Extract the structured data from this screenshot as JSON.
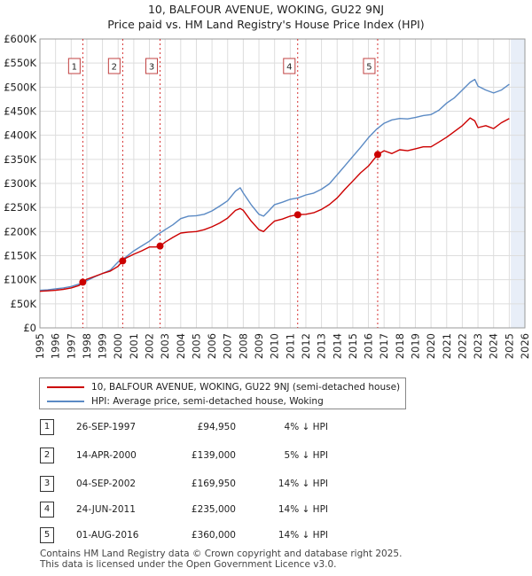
{
  "titles": {
    "line1": "10, BALFOUR AVENUE, WOKING, GU22 9NJ",
    "line2": "Price paid vs. HM Land Registry's House Price Index (HPI)"
  },
  "legend": {
    "red_label": "10, BALFOUR AVENUE, WOKING, GU22 9NJ (semi-detached house)",
    "blue_label": "HPI: Average price, semi-detached house, Woking"
  },
  "colors": {
    "price_line": "#cc0000",
    "hpi_line": "#5b8ac4",
    "highlight_band": "#e8eef8",
    "marker_line": "#cc0000"
  },
  "transactions": [
    {
      "num": "1",
      "date": "26-SEP-1997",
      "price": "£94,950",
      "hpi": "4% ↓ HPI"
    },
    {
      "num": "2",
      "date": "14-APR-2000",
      "price": "£139,000",
      "hpi": "5% ↓ HPI"
    },
    {
      "num": "3",
      "date": "04-SEP-2002",
      "price": "£169,950",
      "hpi": "14% ↓ HPI"
    },
    {
      "num": "4",
      "date": "24-JUN-2011",
      "price": "£235,000",
      "hpi": "14% ↓ HPI"
    },
    {
      "num": "5",
      "date": "01-AUG-2016",
      "price": "£360,000",
      "hpi": "14% ↓ HPI"
    }
  ],
  "footer": {
    "line1": "Contains HM Land Registry data © Crown copyright and database right 2025.",
    "line2": "This data is licensed under the Open Government Licence v3.0."
  },
  "chart_data": {
    "type": "line",
    "xlim": [
      1995,
      2026
    ],
    "ylim": [
      0,
      600000
    ],
    "x_ticks": [
      1995,
      1996,
      1997,
      1998,
      1999,
      2000,
      2001,
      2002,
      2003,
      2004,
      2005,
      2006,
      2007,
      2008,
      2009,
      2010,
      2011,
      2012,
      2013,
      2014,
      2015,
      2016,
      2017,
      2018,
      2019,
      2020,
      2021,
      2022,
      2023,
      2024,
      2025,
      2026
    ],
    "y_ticks": [
      {
        "value": 0,
        "label": "£0"
      },
      {
        "value": 50000,
        "label": "£50K"
      },
      {
        "value": 100000,
        "label": "£100K"
      },
      {
        "value": 150000,
        "label": "£150K"
      },
      {
        "value": 200000,
        "label": "£200K"
      },
      {
        "value": 250000,
        "label": "£250K"
      },
      {
        "value": 300000,
        "label": "£300K"
      },
      {
        "value": 350000,
        "label": "£350K"
      },
      {
        "value": 400000,
        "label": "£400K"
      },
      {
        "value": 450000,
        "label": "£450K"
      },
      {
        "value": 500000,
        "label": "£500K"
      },
      {
        "value": 550000,
        "label": "£550K"
      },
      {
        "value": 600000,
        "label": "£600K"
      }
    ],
    "grid": true,
    "highlight_region": [
      2025.1,
      2026
    ],
    "series": [
      {
        "name": "10, BALFOUR AVENUE, WOKING, GU22 9NJ (semi-detached house)",
        "x": [
          1995.0,
          1995.5,
          1996.0,
          1996.5,
          1997.0,
          1997.5,
          1997.74,
          1998.0,
          1998.5,
          1999.0,
          1999.5,
          2000.0,
          2000.29,
          2000.5,
          2001.0,
          2001.5,
          2002.0,
          2002.5,
          2002.68,
          2003.0,
          2003.5,
          2004.0,
          2004.5,
          2005.0,
          2005.5,
          2006.0,
          2006.5,
          2007.0,
          2007.5,
          2007.8,
          2008.0,
          2008.5,
          2009.0,
          2009.3,
          2009.6,
          2010.0,
          2010.5,
          2011.0,
          2011.48,
          2012.0,
          2012.5,
          2013.0,
          2013.5,
          2014.0,
          2014.5,
          2015.0,
          2015.5,
          2016.0,
          2016.59,
          2017.0,
          2017.5,
          2018.0,
          2018.5,
          2019.0,
          2019.5,
          2020.0,
          2020.5,
          2021.0,
          2021.5,
          2022.0,
          2022.5,
          2022.8,
          2023.0,
          2023.5,
          2024.0,
          2024.5,
          2025.0
        ],
        "y": [
          76000,
          77000,
          78000,
          80000,
          83000,
          88000,
          94950,
          101000,
          107000,
          113000,
          118000,
          128000,
          139000,
          145000,
          153000,
          160000,
          168000,
          168000,
          169950,
          178000,
          188000,
          197000,
          199000,
          200000,
          204000,
          210000,
          218000,
          228000,
          244000,
          248000,
          244000,
          222000,
          204000,
          200000,
          210000,
          222000,
          226000,
          232000,
          235000,
          236000,
          239000,
          246000,
          256000,
          270000,
          288000,
          305000,
          322000,
          336000,
          360000,
          368000,
          362000,
          370000,
          368000,
          372000,
          376000,
          376000,
          386000,
          396000,
          408000,
          420000,
          436000,
          430000,
          416000,
          420000,
          414000,
          426000,
          435000
        ]
      },
      {
        "name": "HPI: Average price, semi-detached house, Woking",
        "x": [
          1995.0,
          1995.5,
          1996.0,
          1996.5,
          1997.0,
          1997.5,
          1998.0,
          1998.5,
          1999.0,
          1999.5,
          2000.0,
          2000.5,
          2001.0,
          2001.5,
          2002.0,
          2002.5,
          2003.0,
          2003.5,
          2004.0,
          2004.5,
          2005.0,
          2005.5,
          2006.0,
          2006.5,
          2007.0,
          2007.5,
          2007.8,
          2008.0,
          2008.5,
          2009.0,
          2009.3,
          2009.6,
          2010.0,
          2010.5,
          2011.0,
          2011.5,
          2012.0,
          2012.5,
          2013.0,
          2013.5,
          2014.0,
          2014.5,
          2015.0,
          2015.5,
          2016.0,
          2016.5,
          2017.0,
          2017.5,
          2018.0,
          2018.5,
          2019.0,
          2019.5,
          2020.0,
          2020.5,
          2021.0,
          2021.5,
          2022.0,
          2022.5,
          2022.8,
          2023.0,
          2023.5,
          2024.0,
          2024.5,
          2025.0
        ],
        "y": [
          78000,
          79000,
          81000,
          83000,
          86000,
          91000,
          98000,
          106000,
          113000,
          120000,
          137000,
          147000,
          160000,
          170000,
          180000,
          193000,
          204000,
          214000,
          227000,
          232000,
          233000,
          236000,
          243000,
          253000,
          264000,
          284000,
          291000,
          280000,
          256000,
          236000,
          232000,
          242000,
          256000,
          261000,
          267000,
          270000,
          276000,
          280000,
          288000,
          299000,
          318000,
          337000,
          356000,
          375000,
          395000,
          412000,
          425000,
          432000,
          435000,
          434000,
          437000,
          441000,
          443000,
          452000,
          467000,
          478000,
          494000,
          510000,
          516000,
          502000,
          494000,
          488000,
          494000,
          506000
        ]
      }
    ],
    "markers": [
      {
        "label": "1",
        "x": 1997.74,
        "y": 94950
      },
      {
        "label": "2",
        "x": 2000.29,
        "y": 139000
      },
      {
        "label": "3",
        "x": 2002.68,
        "y": 169950
      },
      {
        "label": "4",
        "x": 2011.48,
        "y": 235000
      },
      {
        "label": "5",
        "x": 2016.59,
        "y": 360000
      }
    ]
  }
}
